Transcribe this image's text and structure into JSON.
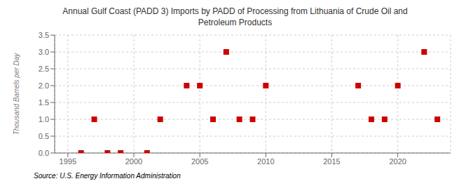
{
  "chart_data": {
    "type": "scatter",
    "title": "Annual Gulf Coast (PADD 3) Imports by PADD of Processing from Lithuania of Crude Oil and\nPetroleum Products",
    "ylabel": "Thousand Barrels per Day",
    "annotations": [
      "Source: U.S. Energy Information Administration"
    ],
    "x": [
      1996,
      1997,
      1998,
      1999,
      2001,
      2002,
      2004,
      2005,
      2006,
      2007,
      2008,
      2009,
      2010,
      2017,
      2018,
      2019,
      2020,
      2022,
      2023
    ],
    "values": [
      0.0,
      1.0,
      0.0,
      0.0,
      0.0,
      1.0,
      2.0,
      2.0,
      1.0,
      3.0,
      1.0,
      1.0,
      2.0,
      2.0,
      1.0,
      1.0,
      2.0,
      3.0,
      1.0
    ],
    "color": "#cc0000",
    "marker": "square",
    "xlim": [
      1994.0,
      2024.0
    ],
    "xticks": [
      1995,
      2000,
      2005,
      2010,
      2015,
      2020
    ],
    "ylim": [
      0,
      3.5
    ],
    "yticks": [
      {
        "value": 0,
        "label": "0.0"
      },
      0.5,
      {
        "value": 1,
        "label": "1.0"
      },
      1.5,
      {
        "value": 2,
        "label": "2.0"
      },
      2.5,
      {
        "value": 3,
        "label": "3.0"
      },
      3.5
    ],
    "grid": true
  }
}
